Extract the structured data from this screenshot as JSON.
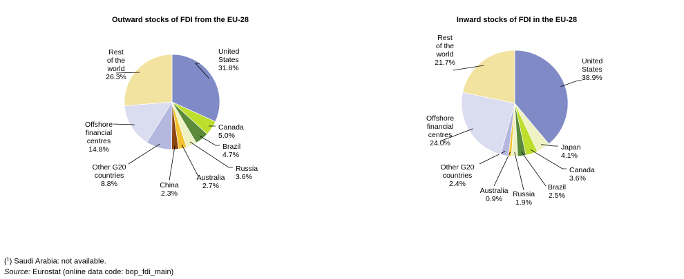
{
  "chart_data": [
    {
      "type": "pie",
      "title": "Outward stocks of FDI from the EU-28",
      "slices": [
        {
          "label": "United\nStates",
          "value": 31.8,
          "value_text": "31.8%",
          "color": "#7f8ac6"
        },
        {
          "label": "Canada",
          "value": 5.0,
          "value_text": "5.0%",
          "color": "#bede2e"
        },
        {
          "label": "Brazil",
          "value": 4.7,
          "value_text": "4.7%",
          "color": "#5a8a3a"
        },
        {
          "label": "Russia",
          "value": 3.6,
          "value_text": "3.6%",
          "color": "#eef2c2"
        },
        {
          "label": "Australia",
          "value": 2.7,
          "value_text": "2.7%",
          "color": "#f2c230"
        },
        {
          "label": "China",
          "value": 2.3,
          "value_text": "2.3%",
          "color": "#8b4513"
        },
        {
          "label": "Other G20\ncountries",
          "value": 8.8,
          "value_text": "8.8%",
          "color": "#b4b8de"
        },
        {
          "label": "Offshore\nfinancial\ncentres",
          "value": 14.8,
          "value_text": "14.8%",
          "color": "#dadcef"
        },
        {
          "label": "Rest\nof the\nworld",
          "value": 26.3,
          "value_text": "26.3%",
          "color": "#f3e3a0"
        }
      ]
    },
    {
      "type": "pie",
      "title": "Inward stocks of FDI  in the EU-28",
      "slices": [
        {
          "label": "United\nStates",
          "value": 38.9,
          "value_text": "38.9%",
          "color": "#7f8ac6"
        },
        {
          "label": "Japan",
          "value": 4.1,
          "value_text": "4.1%",
          "color": "#eef2c2"
        },
        {
          "label": "Canada",
          "value": 3.6,
          "value_text": "3.6%",
          "color": "#bede2e"
        },
        {
          "label": "Brazil",
          "value": 2.5,
          "value_text": "2.5%",
          "color": "#5a8a3a"
        },
        {
          "label": "Russia",
          "value": 1.9,
          "value_text": "1.9%",
          "color": "#eef2c2"
        },
        {
          "label": "Australia",
          "value": 0.9,
          "value_text": "0.9%",
          "color": "#f2c230"
        },
        {
          "label": "Other G20\ncountries",
          "value": 2.4,
          "value_text": "2.4%",
          "color": "#b4b8de"
        },
        {
          "label": "Offshore\nfinancial\ncentres",
          "value": 24.0,
          "value_text": "24.0%",
          "color": "#dadcef"
        },
        {
          "label": "Rest\nof the\nworld",
          "value": 21.7,
          "value_text": "21.7%",
          "color": "#f3e3a0"
        }
      ]
    }
  ],
  "footnotes": {
    "note_marker": "1",
    "note_text": " Saudi Arabia: not available.",
    "source_label": "Source:",
    "source_text": " Eurostat (online data code: bop_fdi_main)"
  }
}
